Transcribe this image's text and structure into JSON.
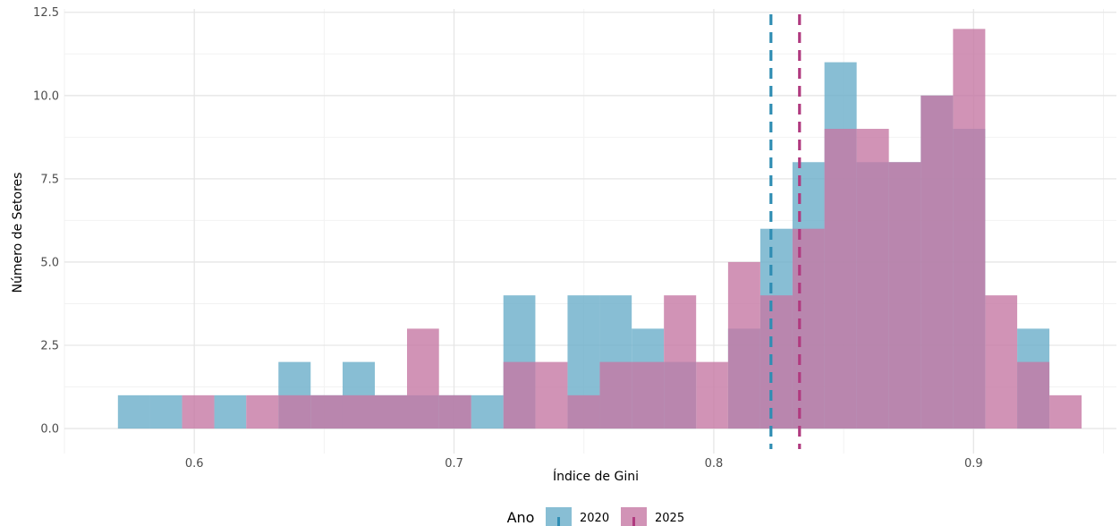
{
  "chart_data": {
    "type": "bar",
    "subtype": "overlapping-histogram",
    "xlabel": "Índice de Gini",
    "ylabel": "Número de Setores",
    "xlim": [
      0.55,
      0.955
    ],
    "ylim": [
      -0.75,
      12.6
    ],
    "x_ticks": [
      0.6,
      0.7,
      0.8,
      0.9
    ],
    "x_tick_labels": [
      "0.6",
      "0.7",
      "0.8",
      "0.9"
    ],
    "y_ticks": [
      0,
      2.5,
      5,
      7.5,
      10,
      12.5
    ],
    "y_tick_labels": [
      "0.0",
      "2.5",
      "5.0",
      "7.5",
      "10.0",
      "12.5"
    ],
    "grid": true,
    "legend_title": "Ano",
    "legend_position": "bottom",
    "series": [
      {
        "name": "2020",
        "color": "#6aaec9",
        "mean_line": 0.822,
        "line_color": "#2f8db3",
        "bins": [
          {
            "x0": 0.5706,
            "x1": 0.5829,
            "count": 1
          },
          {
            "x0": 0.5829,
            "x1": 0.5953,
            "count": 1
          },
          {
            "x0": 0.6077,
            "x1": 0.62,
            "count": 1
          },
          {
            "x0": 0.6324,
            "x1": 0.6448,
            "count": 2
          },
          {
            "x0": 0.6448,
            "x1": 0.6571,
            "count": 1
          },
          {
            "x0": 0.6571,
            "x1": 0.6695,
            "count": 2
          },
          {
            "x0": 0.6695,
            "x1": 0.6819,
            "count": 1
          },
          {
            "x0": 0.6819,
            "x1": 0.6942,
            "count": 1
          },
          {
            "x0": 0.6942,
            "x1": 0.7066,
            "count": 1
          },
          {
            "x0": 0.7066,
            "x1": 0.719,
            "count": 1
          },
          {
            "x0": 0.719,
            "x1": 0.7313,
            "count": 4
          },
          {
            "x0": 0.7437,
            "x1": 0.7561,
            "count": 4
          },
          {
            "x0": 0.7561,
            "x1": 0.7684,
            "count": 4
          },
          {
            "x0": 0.7684,
            "x1": 0.7808,
            "count": 3
          },
          {
            "x0": 0.7808,
            "x1": 0.7932,
            "count": 2
          },
          {
            "x0": 0.8055,
            "x1": 0.8179,
            "count": 3
          },
          {
            "x0": 0.8179,
            "x1": 0.8303,
            "count": 6
          },
          {
            "x0": 0.8303,
            "x1": 0.8426,
            "count": 8
          },
          {
            "x0": 0.8426,
            "x1": 0.855,
            "count": 11
          },
          {
            "x0": 0.855,
            "x1": 0.8674,
            "count": 8
          },
          {
            "x0": 0.8674,
            "x1": 0.8797,
            "count": 8
          },
          {
            "x0": 0.8797,
            "x1": 0.8921,
            "count": 10
          },
          {
            "x0": 0.8921,
            "x1": 0.9045,
            "count": 9
          },
          {
            "x0": 0.9168,
            "x1": 0.9292,
            "count": 3
          }
        ]
      },
      {
        "name": "2025",
        "color": "#c678a4",
        "mean_line": 0.833,
        "line_color": "#b03a7f",
        "bins": [
          {
            "x0": 0.5953,
            "x1": 0.6077,
            "count": 1
          },
          {
            "x0": 0.62,
            "x1": 0.6324,
            "count": 1
          },
          {
            "x0": 0.6324,
            "x1": 0.6448,
            "count": 1
          },
          {
            "x0": 0.6448,
            "x1": 0.6571,
            "count": 1
          },
          {
            "x0": 0.6571,
            "x1": 0.6695,
            "count": 1
          },
          {
            "x0": 0.6695,
            "x1": 0.6819,
            "count": 1
          },
          {
            "x0": 0.6819,
            "x1": 0.6942,
            "count": 3
          },
          {
            "x0": 0.6942,
            "x1": 0.7066,
            "count": 1
          },
          {
            "x0": 0.719,
            "x1": 0.7313,
            "count": 2
          },
          {
            "x0": 0.7313,
            "x1": 0.7437,
            "count": 2
          },
          {
            "x0": 0.7437,
            "x1": 0.7561,
            "count": 1
          },
          {
            "x0": 0.7561,
            "x1": 0.7684,
            "count": 2
          },
          {
            "x0": 0.7684,
            "x1": 0.7808,
            "count": 2
          },
          {
            "x0": 0.7808,
            "x1": 0.7932,
            "count": 4
          },
          {
            "x0": 0.7932,
            "x1": 0.8055,
            "count": 2
          },
          {
            "x0": 0.8055,
            "x1": 0.8179,
            "count": 5
          },
          {
            "x0": 0.8179,
            "x1": 0.8303,
            "count": 4
          },
          {
            "x0": 0.8303,
            "x1": 0.8426,
            "count": 6
          },
          {
            "x0": 0.8426,
            "x1": 0.855,
            "count": 9
          },
          {
            "x0": 0.855,
            "x1": 0.8674,
            "count": 9
          },
          {
            "x0": 0.8674,
            "x1": 0.8797,
            "count": 8
          },
          {
            "x0": 0.8797,
            "x1": 0.8921,
            "count": 10
          },
          {
            "x0": 0.8921,
            "x1": 0.9045,
            "count": 12
          },
          {
            "x0": 0.9045,
            "x1": 0.9168,
            "count": 4
          },
          {
            "x0": 0.9168,
            "x1": 0.9292,
            "count": 2
          },
          {
            "x0": 0.9292,
            "x1": 0.9416,
            "count": 1
          }
        ]
      }
    ]
  }
}
